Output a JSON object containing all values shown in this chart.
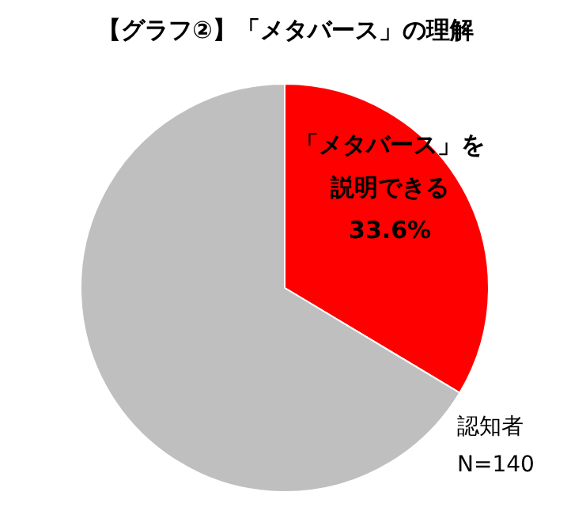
{
  "chart_data": {
    "type": "pie",
    "title": "【グラフ②】「メタバース」の理解",
    "categories": [
      "「メタバース」を説明できる",
      null
    ],
    "values": [
      33.6,
      66.4
    ],
    "colors": [
      "#ff0000",
      "#bfbfbf"
    ],
    "value_labels": [
      "33.6%",
      null
    ],
    "annotations": [
      "認知者",
      "N=140"
    ]
  }
}
